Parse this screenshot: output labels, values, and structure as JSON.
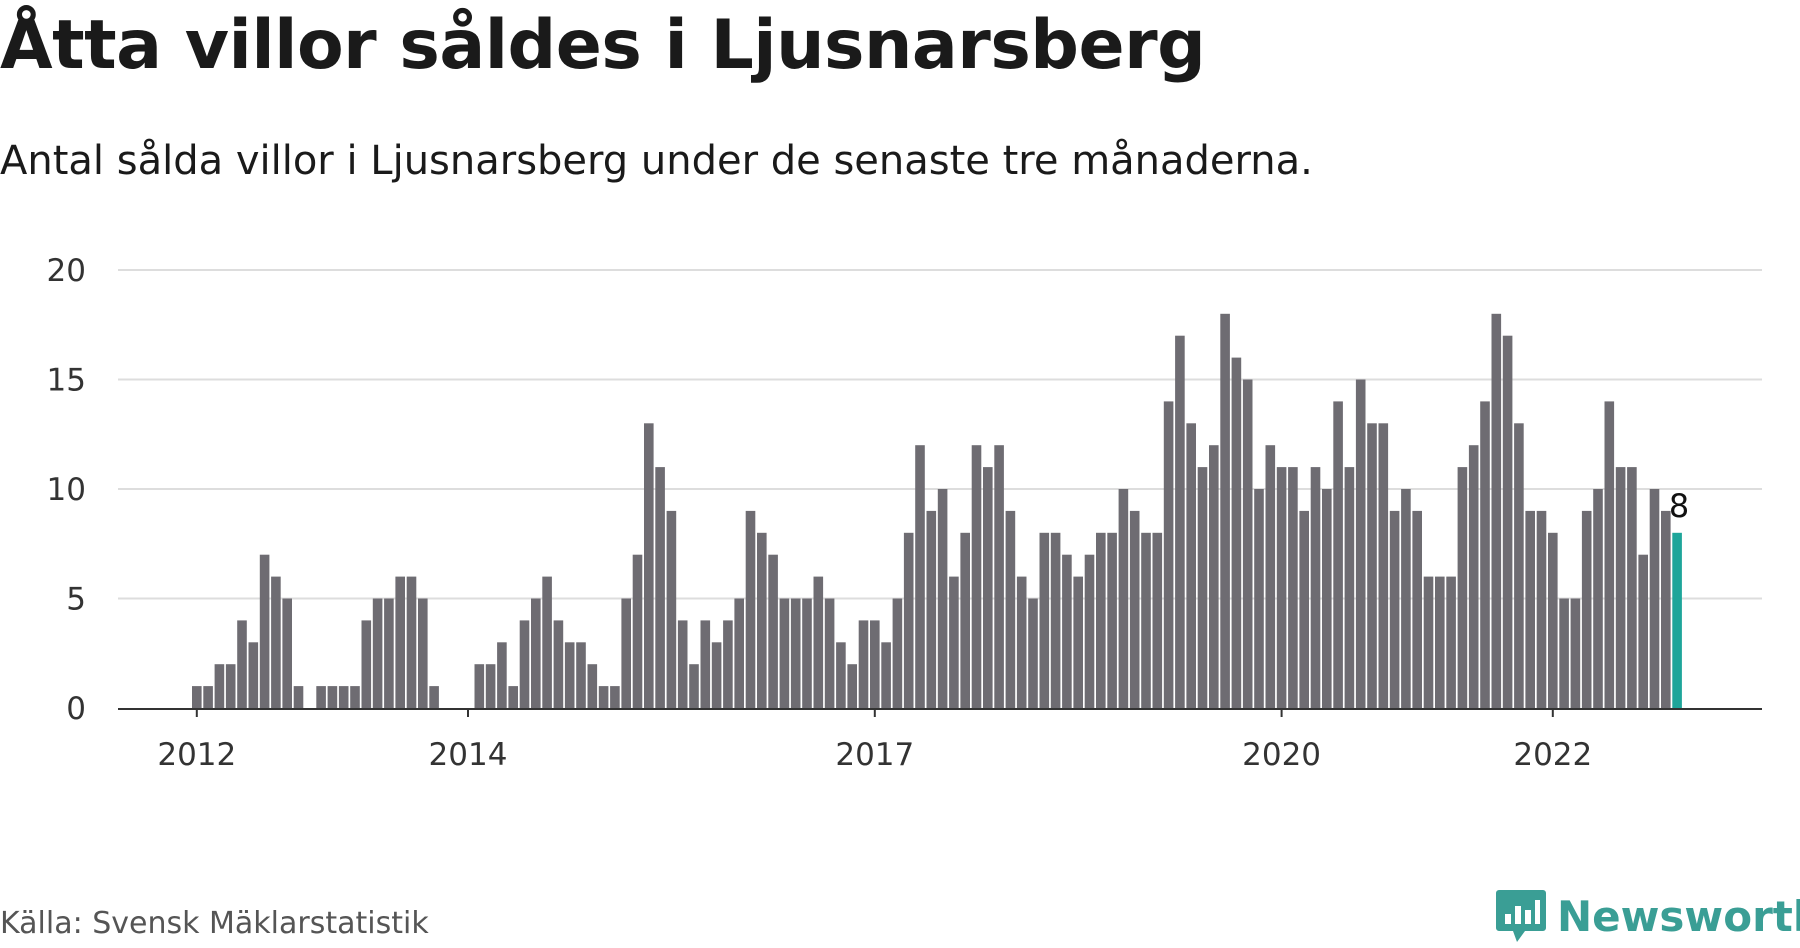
{
  "header": {
    "title": "Åtta villor såldes i Ljusnarsberg",
    "subtitle": "Antal sålda villor i Ljusnarsberg under de senaste tre månaderna."
  },
  "footer": {
    "source": "Källa: Svensk Mäklarstatistik",
    "brand": "Newsworthy"
  },
  "colors": {
    "bar": "#6e6c72",
    "highlight": "#1ea59a",
    "grid": "#dddddd",
    "brand": "#3a9e95"
  },
  "chart_data": {
    "type": "bar",
    "title": "Åtta villor såldes i Ljusnarsberg",
    "subtitle": "Antal sålda villor i Ljusnarsberg under de senaste tre månaderna.",
    "xlabel": "",
    "ylabel": "",
    "ylim": [
      0,
      20
    ],
    "yticks": [
      "0",
      "5",
      "10",
      "15",
      "20"
    ],
    "xticks": [
      {
        "label": "2012",
        "index": 0
      },
      {
        "label": "2014",
        "index": 24
      },
      {
        "label": "2017",
        "index": 60
      },
      {
        "label": "2020",
        "index": 96
      },
      {
        "label": "2022",
        "index": 120
      }
    ],
    "grid": true,
    "highlight_label": "8",
    "values": [
      1,
      1,
      2,
      2,
      4,
      3,
      7,
      6,
      5,
      1,
      0,
      1,
      1,
      1,
      1,
      4,
      5,
      5,
      6,
      6,
      5,
      1,
      0,
      0,
      0,
      2,
      2,
      3,
      1,
      4,
      5,
      6,
      4,
      3,
      3,
      2,
      1,
      1,
      5,
      7,
      13,
      11,
      9,
      4,
      2,
      4,
      3,
      4,
      5,
      9,
      8,
      7,
      5,
      5,
      5,
      6,
      5,
      3,
      2,
      4,
      4,
      3,
      5,
      8,
      12,
      9,
      10,
      6,
      8,
      12,
      11,
      12,
      9,
      6,
      5,
      8,
      8,
      7,
      6,
      7,
      8,
      8,
      10,
      9,
      8,
      8,
      14,
      17,
      13,
      11,
      12,
      18,
      16,
      15,
      10,
      12,
      11,
      11,
      9,
      11,
      10,
      14,
      11,
      15,
      13,
      13,
      9,
      10,
      9,
      6,
      6,
      6,
      11,
      12,
      14,
      18,
      17,
      13,
      9,
      9,
      8,
      5,
      5,
      9,
      10,
      14,
      11,
      11,
      7,
      10,
      9,
      8
    ]
  }
}
